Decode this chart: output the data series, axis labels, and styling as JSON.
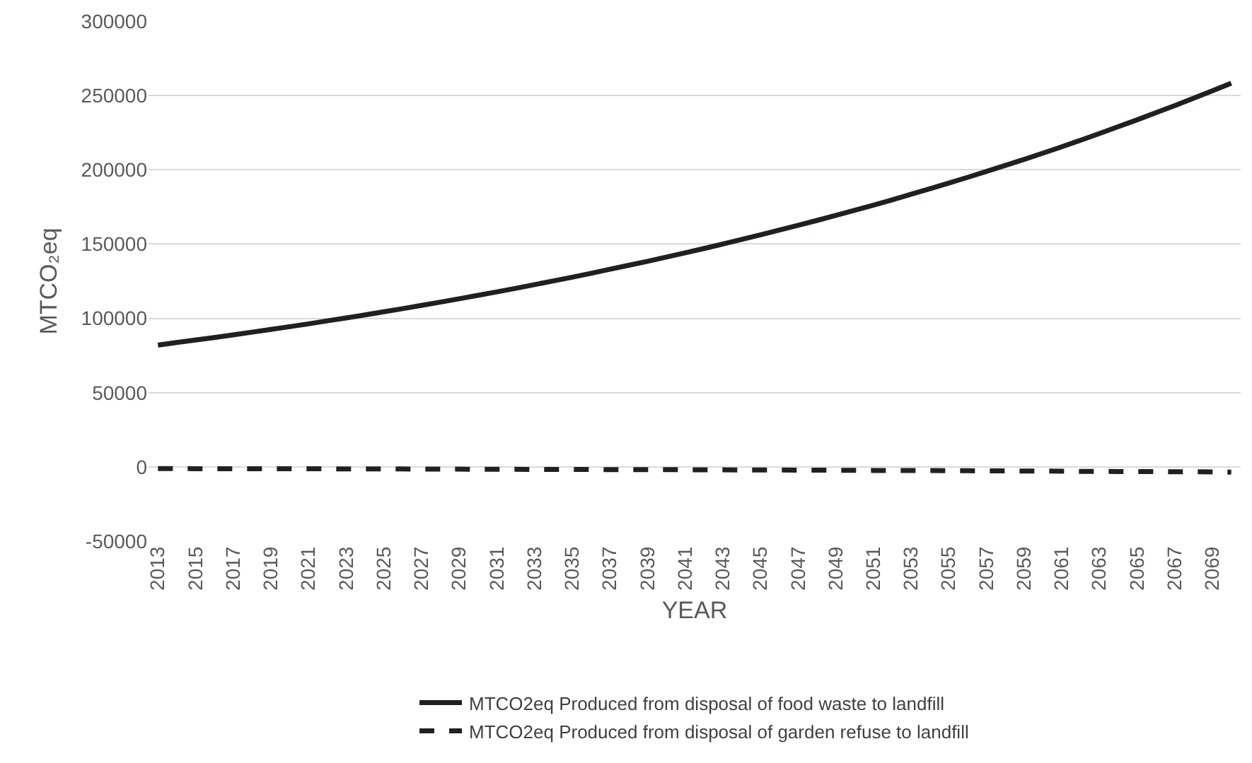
{
  "chart_data": {
    "type": "line",
    "xlabel": "YEAR",
    "ylabel": "MTCO₂eq",
    "categories": [
      "2013",
      null,
      "2015",
      null,
      "2017",
      null,
      "2019",
      null,
      "2021",
      null,
      "2023",
      null,
      "2025",
      null,
      "2027",
      null,
      "2029",
      null,
      "2031",
      null,
      "2033",
      null,
      "2035",
      null,
      "2037",
      null,
      "2039",
      null,
      "2041",
      null,
      "2043",
      null,
      "2045",
      null,
      "2047",
      null,
      "2049",
      null,
      "2051",
      null,
      "2053",
      null,
      "2055",
      null,
      "2057",
      null,
      "2059",
      null,
      "2061",
      null,
      "2063",
      null,
      "2065",
      null,
      "2067",
      null,
      "2069",
      null
    ],
    "series": [
      {
        "name": "MTCO2eq Produced from disposal of food waste to landfill",
        "color": "#231f20",
        "line_style": "solid",
        "values": [
          82000,
          83700,
          85400,
          87100,
          88900,
          90700,
          92500,
          94400,
          96300,
          98300,
          100300,
          102300,
          104400,
          106500,
          108700,
          110900,
          113200,
          115500,
          117800,
          120200,
          122700,
          125200,
          127700,
          130300,
          133000,
          135700,
          138400,
          141200,
          144100,
          147000,
          150000,
          153100,
          156200,
          159400,
          162600,
          165900,
          169300,
          172700,
          176200,
          179800,
          183500,
          187200,
          191000,
          194900,
          198900,
          202900,
          207000,
          211200,
          215500,
          219900,
          224400,
          229000,
          233600,
          238400,
          243200,
          248200,
          253200,
          258300
        ]
      },
      {
        "name": "MTCO2eq Produced from disposal of garden refuse to landfill",
        "color": "#231f20",
        "line_style": "dashed",
        "values": [
          -1100,
          -1100,
          -1200,
          -1200,
          -1200,
          -1200,
          -1200,
          -1300,
          -1300,
          -1300,
          -1400,
          -1400,
          -1400,
          -1400,
          -1500,
          -1500,
          -1500,
          -1600,
          -1600,
          -1600,
          -1700,
          -1700,
          -1700,
          -1800,
          -1800,
          -1800,
          -1900,
          -1900,
          -1900,
          -2000,
          -2000,
          -2100,
          -2100,
          -2100,
          -2200,
          -2200,
          -2300,
          -2300,
          -2400,
          -2400,
          -2500,
          -2500,
          -2600,
          -2600,
          -2700,
          -2700,
          -2800,
          -2800,
          -2900,
          -3000,
          -3000,
          -3100,
          -3100,
          -3200,
          -3300,
          -3300,
          -3400,
          -3500
        ]
      }
    ],
    "ylim": [
      -50000,
      300000
    ],
    "yticks": [
      -50000,
      0,
      50000,
      100000,
      150000,
      200000,
      250000,
      300000
    ],
    "grid": "y",
    "legend": "bottom",
    "marker": "none"
  }
}
